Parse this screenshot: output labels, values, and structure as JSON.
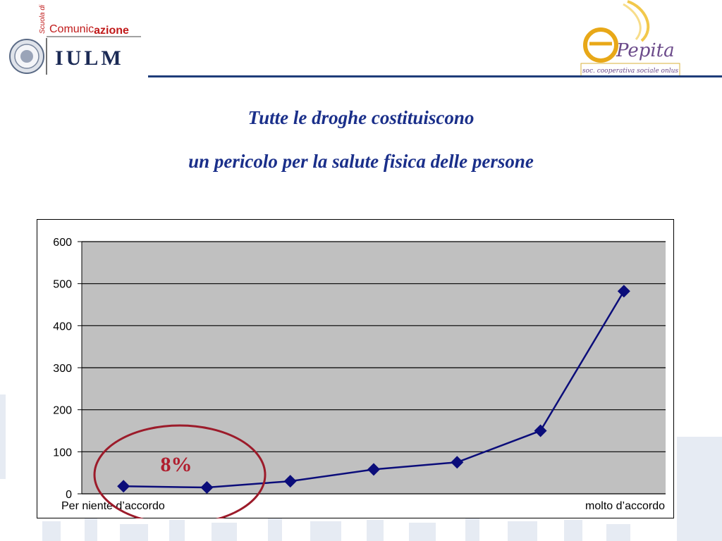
{
  "header": {
    "school_label": "Scuola di",
    "comunic_label": "Comunic",
    "azione_label": "azione",
    "iulm_label": "IULM",
    "pepita_label": "Pepita",
    "pepita_tagline": "soc. cooperativa sociale onlus"
  },
  "title": {
    "line1": "Tutte le droghe costituiscono",
    "line2": "un pericolo per la salute fisica delle persone"
  },
  "annotation": {
    "label": "8%",
    "color": "#b01e2e"
  },
  "colors": {
    "title": "#1a2f8a",
    "series": "#0b0d7a",
    "plot_bg": "#c0c0c0",
    "header_line": "#1f3d7a"
  },
  "chart_data": {
    "type": "line",
    "x": [
      1,
      2,
      3,
      4,
      5,
      6,
      7
    ],
    "series": [
      {
        "values": [
          18,
          15,
          30,
          58,
          75,
          150,
          482
        ]
      }
    ],
    "ylim": [
      0,
      600
    ],
    "yticks": [
      0,
      100,
      200,
      300,
      400,
      500,
      600
    ],
    "xlabel_left": "Per niente d’accordo",
    "xlabel_right": "molto d’accordo",
    "grid": true,
    "legend": "none"
  }
}
